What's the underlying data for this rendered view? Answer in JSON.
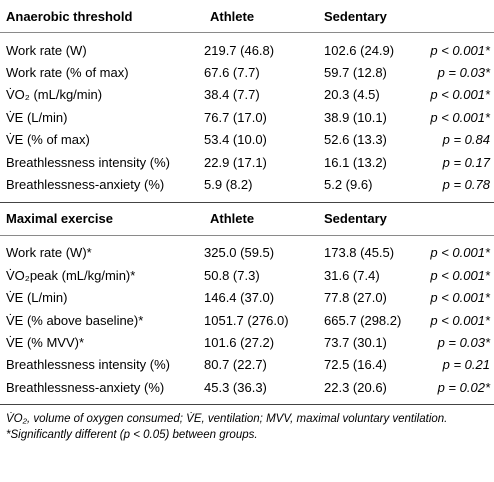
{
  "sections": [
    {
      "title": "Anaerobic threshold",
      "col_athlete": "Athlete",
      "col_sedentary": "Sedentary",
      "rows": [
        {
          "label": "Work rate (W)",
          "athlete": "219.7 (46.8)",
          "sedentary": "102.6 (24.9)",
          "p": "p < 0.001*"
        },
        {
          "label": "Work rate (% of max)",
          "athlete": "67.6 (7.7)",
          "sedentary": "59.7 (12.8)",
          "p": "p = 0.03*"
        },
        {
          "label": "V̇O₂ (mL/kg/min)",
          "athlete": "38.4 (7.7)",
          "sedentary": "20.3 (4.5)",
          "p": "p < 0.001*"
        },
        {
          "label": "V̇E (L/min)",
          "athlete": "76.7 (17.0)",
          "sedentary": "38.9 (10.1)",
          "p": "p < 0.001*"
        },
        {
          "label": "V̇E (% of max)",
          "athlete": "53.4 (10.0)",
          "sedentary": "52.6 (13.3)",
          "p": "p = 0.84"
        },
        {
          "label": "Breathlessness intensity (%)",
          "athlete": "22.9 (17.1)",
          "sedentary": "16.1 (13.2)",
          "p": "p = 0.17"
        },
        {
          "label": "Breathlessness-anxiety (%)",
          "athlete": "5.9 (8.2)",
          "sedentary": "5.2 (9.6)",
          "p": "p = 0.78"
        }
      ]
    },
    {
      "title": "Maximal exercise",
      "col_athlete": "Athlete",
      "col_sedentary": "Sedentary",
      "rows": [
        {
          "label": "Work rate (W)*",
          "athlete": "325.0 (59.5)",
          "sedentary": "173.8 (45.5)",
          "p": "p < 0.001*"
        },
        {
          "label": "V̇O₂peak (mL/kg/min)*",
          "athlete": "50.8 (7.3)",
          "sedentary": "31.6 (7.4)",
          "p": "p < 0.001*"
        },
        {
          "label": "V̇E (L/min)",
          "athlete": "146.4 (37.0)",
          "sedentary": "77.8 (27.0)",
          "p": "p < 0.001*"
        },
        {
          "label": "V̇E (% above baseline)*",
          "athlete": "1051.7 (276.0)",
          "sedentary": "665.7 (298.2)",
          "p": "p < 0.001*"
        },
        {
          "label": "V̇E (% MVV)*",
          "athlete": "101.6 (27.2)",
          "sedentary": "73.7 (30.1)",
          "p": "p = 0.03*"
        },
        {
          "label": "Breathlessness intensity (%)",
          "athlete": "80.7 (22.7)",
          "sedentary": "72.5 (16.4)",
          "p": "p = 0.21"
        },
        {
          "label": "Breathlessness-anxiety (%)",
          "athlete": "45.3 (36.3)",
          "sedentary": "22.3 (20.6)",
          "p": "p = 0.02*"
        }
      ]
    }
  ],
  "footnotes": {
    "abbrev": "V̇O₂, volume of oxygen consumed; V̇E, ventilation; MVV, maximal voluntary ventilation.",
    "sig": "*Significantly different (p < 0.05) between groups."
  }
}
